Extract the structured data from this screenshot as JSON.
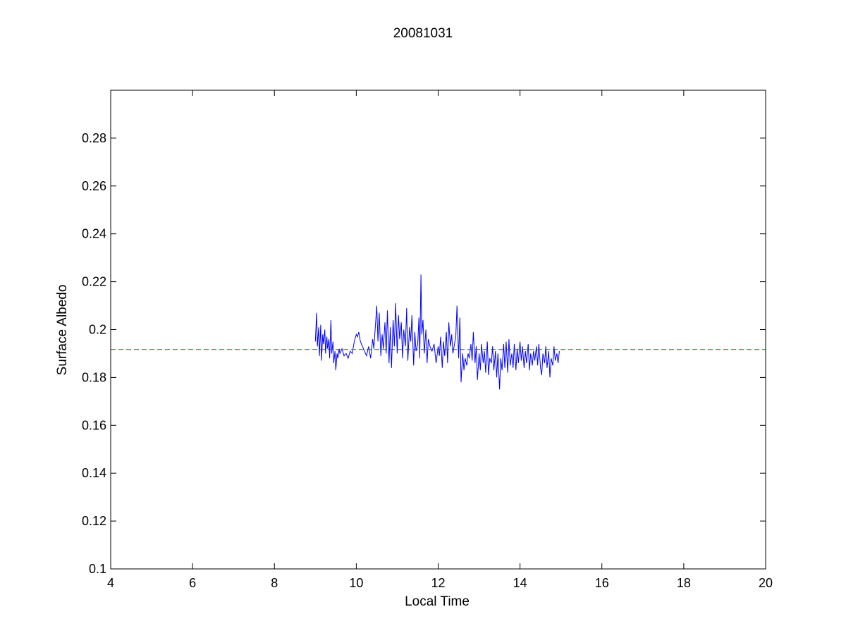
{
  "chart_data": {
    "type": "line",
    "title": "20081031",
    "xlabel": "Local Time",
    "ylabel": "Surface Albedo",
    "xlim": [
      4,
      20
    ],
    "ylim": [
      0.1,
      0.3
    ],
    "xticks": [
      4,
      6,
      8,
      10,
      12,
      14,
      16,
      18,
      20
    ],
    "xtick_labels": [
      "4",
      "6",
      "8",
      "10",
      "12",
      "14",
      "16",
      "18",
      "20"
    ],
    "yticks": [
      0.1,
      0.12,
      0.14,
      0.16,
      0.18,
      0.2,
      0.22,
      0.24,
      0.26,
      0.28
    ],
    "ytick_labels": [
      "0.1",
      "0.12",
      "0.14",
      "0.16",
      "0.18",
      "0.2",
      "0.22",
      "0.24",
      "0.26",
      "0.28"
    ],
    "grid": false,
    "series": [
      {
        "color": "#0000ff",
        "style": "solid",
        "x": [
          9.0,
          9.03,
          9.05,
          9.08,
          9.1,
          9.13,
          9.15,
          9.18,
          9.2,
          9.23,
          9.25,
          9.28,
          9.3,
          9.33,
          9.35,
          9.38,
          9.4,
          9.43,
          9.45,
          9.48,
          9.5,
          9.53,
          9.55,
          9.58,
          9.6,
          9.65,
          9.7,
          9.75,
          9.8,
          9.85,
          9.9,
          9.95,
          10.0,
          10.03,
          10.06,
          10.1,
          10.15,
          10.2,
          10.25,
          10.3,
          10.35,
          10.4,
          10.43,
          10.46,
          10.5,
          10.53,
          10.56,
          10.6,
          10.63,
          10.66,
          10.7,
          10.73,
          10.76,
          10.8,
          10.83,
          10.86,
          10.9,
          10.93,
          10.96,
          11.0,
          11.03,
          11.06,
          11.1,
          11.13,
          11.16,
          11.2,
          11.23,
          11.26,
          11.3,
          11.33,
          11.36,
          11.4,
          11.43,
          11.46,
          11.5,
          11.53,
          11.55,
          11.58,
          11.6,
          11.63,
          11.66,
          11.7,
          11.73,
          11.76,
          11.8,
          11.85,
          11.9,
          11.95,
          12.0,
          12.03,
          12.06,
          12.1,
          12.13,
          12.16,
          12.2,
          12.23,
          12.26,
          12.3,
          12.33,
          12.36,
          12.4,
          12.43,
          12.46,
          12.5,
          12.53,
          12.56,
          12.6,
          12.63,
          12.66,
          12.7,
          12.73,
          12.76,
          12.8,
          12.83,
          12.86,
          12.9,
          12.93,
          12.96,
          13.0,
          13.03,
          13.06,
          13.1,
          13.13,
          13.16,
          13.2,
          13.23,
          13.26,
          13.3,
          13.33,
          13.36,
          13.4,
          13.43,
          13.46,
          13.5,
          13.53,
          13.56,
          13.6,
          13.63,
          13.66,
          13.7,
          13.73,
          13.76,
          13.8,
          13.83,
          13.86,
          13.9,
          13.93,
          13.96,
          14.0,
          14.03,
          14.06,
          14.1,
          14.13,
          14.16,
          14.2,
          14.23,
          14.26,
          14.3,
          14.33,
          14.36,
          14.4,
          14.43,
          14.46,
          14.5,
          14.53,
          14.56,
          14.6,
          14.63,
          14.66,
          14.7,
          14.73,
          14.76,
          14.8,
          14.83,
          14.86,
          14.9,
          14.93,
          14.96
        ],
        "y": [
          0.195,
          0.207,
          0.193,
          0.201,
          0.189,
          0.202,
          0.187,
          0.198,
          0.194,
          0.2,
          0.19,
          0.197,
          0.192,
          0.196,
          0.188,
          0.204,
          0.19,
          0.195,
          0.186,
          0.191,
          0.183,
          0.19,
          0.188,
          0.192,
          0.19,
          0.192,
          0.189,
          0.19,
          0.188,
          0.191,
          0.19,
          0.195,
          0.198,
          0.197,
          0.199,
          0.195,
          0.193,
          0.191,
          0.189,
          0.193,
          0.188,
          0.196,
          0.192,
          0.2,
          0.21,
          0.195,
          0.207,
          0.189,
          0.198,
          0.192,
          0.203,
          0.19,
          0.208,
          0.186,
          0.201,
          0.184,
          0.204,
          0.193,
          0.211,
          0.19,
          0.206,
          0.196,
          0.203,
          0.188,
          0.2,
          0.193,
          0.209,
          0.187,
          0.201,
          0.195,
          0.206,
          0.185,
          0.199,
          0.191,
          0.194,
          0.205,
          0.188,
          0.223,
          0.198,
          0.204,
          0.19,
          0.2,
          0.186,
          0.196,
          0.193,
          0.191,
          0.194,
          0.186,
          0.193,
          0.189,
          0.197,
          0.184,
          0.195,
          0.189,
          0.199,
          0.186,
          0.203,
          0.193,
          0.198,
          0.19,
          0.194,
          0.197,
          0.21,
          0.188,
          0.205,
          0.178,
          0.19,
          0.183,
          0.188,
          0.185,
          0.19,
          0.188,
          0.194,
          0.187,
          0.199,
          0.186,
          0.193,
          0.179,
          0.19,
          0.183,
          0.194,
          0.186,
          0.191,
          0.182,
          0.195,
          0.181,
          0.188,
          0.186,
          0.193,
          0.183,
          0.191,
          0.18,
          0.19,
          0.175,
          0.188,
          0.183,
          0.194,
          0.184,
          0.195,
          0.182,
          0.196,
          0.185,
          0.19,
          0.184,
          0.194,
          0.183,
          0.192,
          0.186,
          0.195,
          0.187,
          0.193,
          0.184,
          0.191,
          0.186,
          0.194,
          0.183,
          0.19,
          0.185,
          0.191,
          0.187,
          0.193,
          0.185,
          0.194,
          0.184,
          0.181,
          0.19,
          0.186,
          0.193,
          0.184,
          0.191,
          0.18,
          0.188,
          0.185,
          0.193,
          0.187,
          0.19,
          0.186,
          0.191
        ]
      },
      {
        "color": "#b22222",
        "style": "dashed",
        "x": [
          4,
          20
        ],
        "y": [
          0.1917,
          0.1917
        ]
      }
    ]
  }
}
